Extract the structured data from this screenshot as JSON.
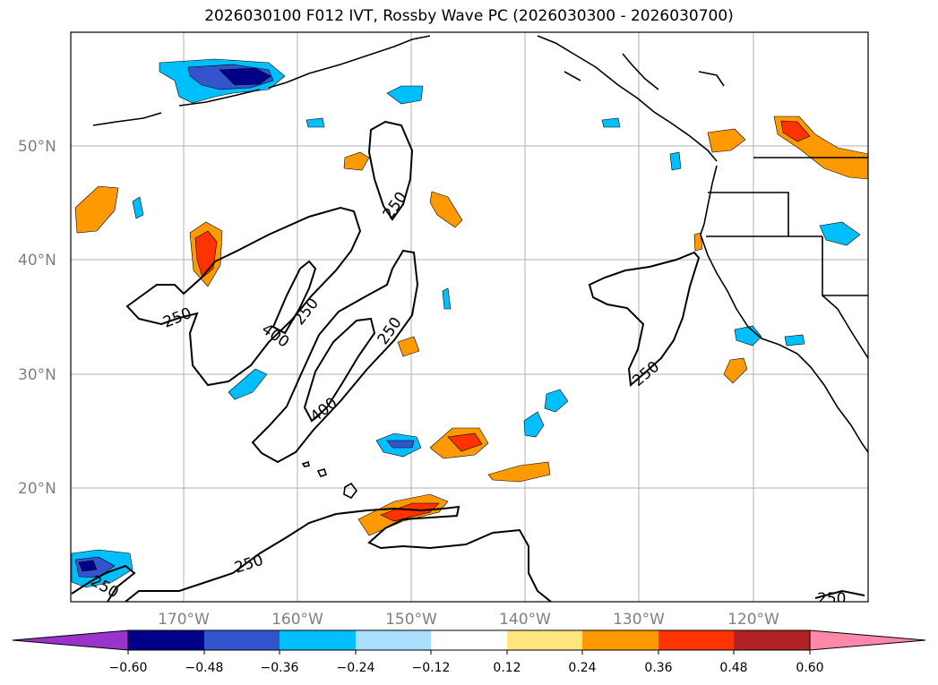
{
  "title": "2026030100 F012 IVT, Rossby Wave PC (2026030300 - 2026030700)",
  "lat_labels": [
    "50°N",
    "40°N",
    "30°N",
    "20°N"
  ],
  "lon_labels": [
    "170°W",
    "160°W",
    "150°W",
    "140°W",
    "130°W",
    "120°W"
  ],
  "contour_labels": [
    "250",
    "250",
    "250",
    "400",
    "250",
    "400",
    "250",
    "250",
    "250",
    "250"
  ],
  "colorbar": {
    "ticks": [
      "−0.60",
      "−0.48",
      "−0.36",
      "−0.24",
      "−0.12",
      "0.12",
      "0.24",
      "0.36",
      "0.48",
      "0.60"
    ],
    "colors": [
      "#9933cc",
      "#000088",
      "#3355cc",
      "#00bfff",
      "#aadfff",
      "#ffffff",
      "#ffe680",
      "#ff9900",
      "#ff3300",
      "#b22222",
      "#ff88aa"
    ]
  }
}
